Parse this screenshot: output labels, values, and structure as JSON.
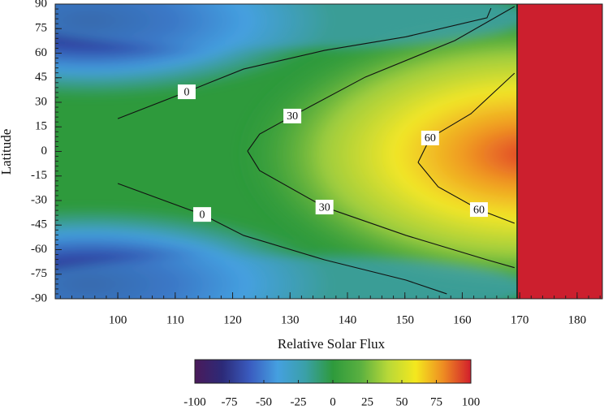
{
  "chart_data": {
    "type": "contour",
    "xlabel": "Relative Solar Flux",
    "ylabel": "Latitude",
    "xlim": [
      89.1,
      184.4
    ],
    "ylim": [
      -90,
      90
    ],
    "xticks": [
      100,
      110,
      120,
      130,
      140,
      150,
      160,
      170,
      180
    ],
    "yticks": [
      90,
      75,
      60,
      45,
      30,
      15,
      0,
      -15,
      -30,
      -45,
      -60,
      -75,
      -90
    ],
    "contours": [
      {
        "level": 0,
        "x": [
          100,
          112,
          121.9,
          136,
          150.2,
          164.3,
          165
        ],
        "y": [
          20,
          36.4,
          50.3,
          61.7,
          70,
          81.6,
          87.5
        ]
      },
      {
        "level": 0,
        "x": [
          100,
          114.7,
          121.9,
          136,
          150.2,
          157.3
        ],
        "y": [
          -19.6,
          -38.5,
          -51.3,
          -66.2,
          -78.6,
          -87
        ]
      },
      {
        "level": 30,
        "x": [
          169.1,
          158.7,
          143.1,
          130.4,
          124.7,
          122.6
        ],
        "y": [
          88.5,
          67.7,
          45.4,
          21.6,
          10.6,
          0.2
        ]
      },
      {
        "level": 30,
        "x": [
          122.6,
          124.7,
          136,
          150.2,
          164.3,
          169.1
        ],
        "y": [
          0.2,
          -11.7,
          -34,
          -51.3,
          -66.2,
          -71
        ]
      },
      {
        "level": 60,
        "x": [
          169.1,
          161.5,
          154.4,
          152.3
        ],
        "y": [
          47.8,
          23,
          8.2,
          -6.7
        ]
      },
      {
        "level": 60,
        "x": [
          152.3,
          155.8,
          162.9,
          169.1
        ],
        "y": [
          -6.7,
          -21.6,
          -35.5,
          -43.9
        ]
      }
    ],
    "colorbar": {
      "lim": [
        -100,
        100
      ],
      "ticks": [
        -100,
        -75,
        -50,
        -25,
        0,
        25,
        50,
        75,
        100
      ],
      "colors": [
        "#4a1a5a",
        "#2c2a78",
        "#3a5cc0",
        "#45a0e0",
        "#3aa0a8",
        "#2e9a3c",
        "#5ab040",
        "#b8d838",
        "#f4e81e",
        "#ee8c22",
        "#d21e2c"
      ]
    }
  }
}
